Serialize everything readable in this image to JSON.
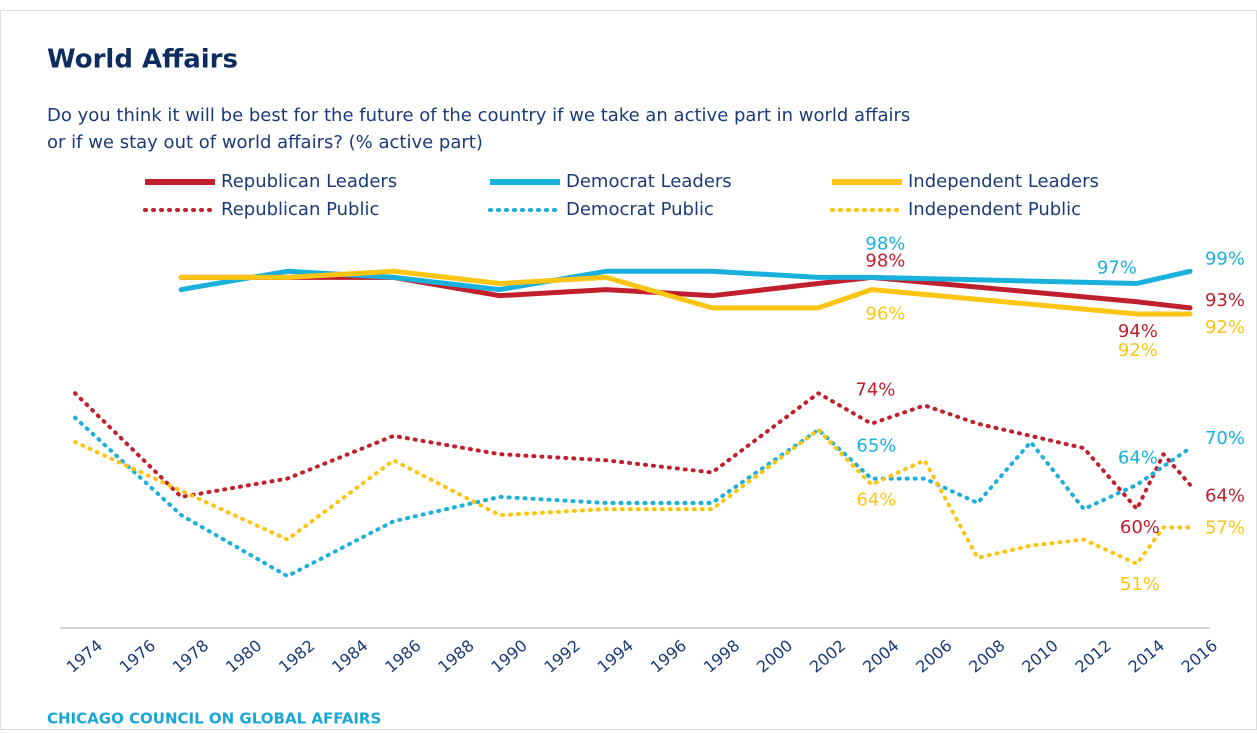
{
  "chart_data": {
    "type": "line",
    "title": "World Affairs",
    "subtitle": [
      "Do you think it will be best for the future of the country if we take an active part in world affairs",
      "or if we stay out of world affairs? (% active part)"
    ],
    "source": "CHICAGO COUNCIL ON GLOBAL AFFAIRS",
    "xlim": [
      1974,
      2016
    ],
    "xticks": [
      1974,
      1976,
      1978,
      1980,
      1982,
      1984,
      1986,
      1988,
      1990,
      1992,
      1994,
      1996,
      1998,
      2000,
      2002,
      2004,
      2006,
      2008,
      2010,
      2012,
      2014,
      2016
    ],
    "ylim": [
      40,
      102
    ],
    "series": [
      {
        "name": "Republican Leaders",
        "color": "#c0202e",
        "style": "solid",
        "x": [
          1978,
          1982,
          1986,
          1990,
          1994,
          1998,
          2002,
          2004,
          2014,
          2016
        ],
        "values": [
          98,
          98,
          98,
          95,
          96,
          95,
          97,
          98,
          94,
          93
        ],
        "value_labels": [
          null,
          null,
          null,
          null,
          null,
          null,
          null,
          "98%",
          "94%",
          "93%"
        ]
      },
      {
        "name": "Democrat Leaders",
        "color": "#1ab0dc",
        "style": "solid",
        "x": [
          1978,
          1982,
          1986,
          1990,
          1994,
          1998,
          2002,
          2004,
          2014,
          2016
        ],
        "values": [
          96,
          99,
          98,
          96,
          99,
          99,
          98,
          98,
          97,
          99
        ],
        "value_labels": [
          null,
          null,
          null,
          null,
          null,
          null,
          null,
          "98%",
          "97%",
          "99%"
        ]
      },
      {
        "name": "Independent Leaders",
        "color": "#fcc514",
        "style": "solid",
        "x": [
          1978,
          1982,
          1986,
          1990,
          1994,
          1998,
          2002,
          2004,
          2014,
          2016
        ],
        "values": [
          98,
          98,
          99,
          97,
          98,
          93,
          93,
          96,
          92,
          92
        ],
        "value_labels": [
          null,
          null,
          null,
          null,
          null,
          null,
          null,
          "96%",
          "92%",
          "92%"
        ]
      },
      {
        "name": "Republican Public",
        "color": "#c0202e",
        "style": "dotted",
        "x": [
          1974,
          1978,
          1982,
          1986,
          1990,
          1994,
          1998,
          2002,
          2004,
          2006,
          2008,
          2010,
          2012,
          2014,
          2015,
          2016
        ],
        "values": [
          79,
          62,
          65,
          72,
          69,
          68,
          66,
          79,
          74,
          77,
          74,
          72,
          70,
          60,
          69,
          64
        ],
        "value_labels": [
          null,
          null,
          null,
          null,
          null,
          null,
          null,
          null,
          "74%",
          null,
          null,
          null,
          null,
          "60%",
          null,
          "64%"
        ]
      },
      {
        "name": "Democrat Public",
        "color": "#1ab0dc",
        "style": "dotted",
        "x": [
          1974,
          1978,
          1982,
          1986,
          1990,
          1994,
          1998,
          2002,
          2004,
          2006,
          2008,
          2010,
          2012,
          2014,
          2016
        ],
        "values": [
          75,
          59,
          49,
          58,
          62,
          61,
          61,
          73,
          65,
          65,
          61,
          71,
          60,
          64,
          70
        ],
        "value_labels": [
          null,
          null,
          null,
          null,
          null,
          null,
          null,
          null,
          "65%",
          null,
          null,
          null,
          null,
          "64%",
          "70%"
        ]
      },
      {
        "name": "Independent Public",
        "color": "#fcc514",
        "style": "dotted",
        "x": [
          1974,
          1978,
          1982,
          1986,
          1990,
          1994,
          1998,
          2002,
          2004,
          2006,
          2008,
          2010,
          2012,
          2014,
          2015,
          2016
        ],
        "values": [
          71,
          63,
          55,
          68,
          59,
          60,
          60,
          73,
          64,
          68,
          52,
          54,
          55,
          51,
          57,
          57
        ],
        "value_labels": [
          null,
          null,
          null,
          null,
          null,
          null,
          null,
          null,
          "64%",
          null,
          null,
          null,
          null,
          "51%",
          null,
          "57%"
        ]
      }
    ]
  }
}
